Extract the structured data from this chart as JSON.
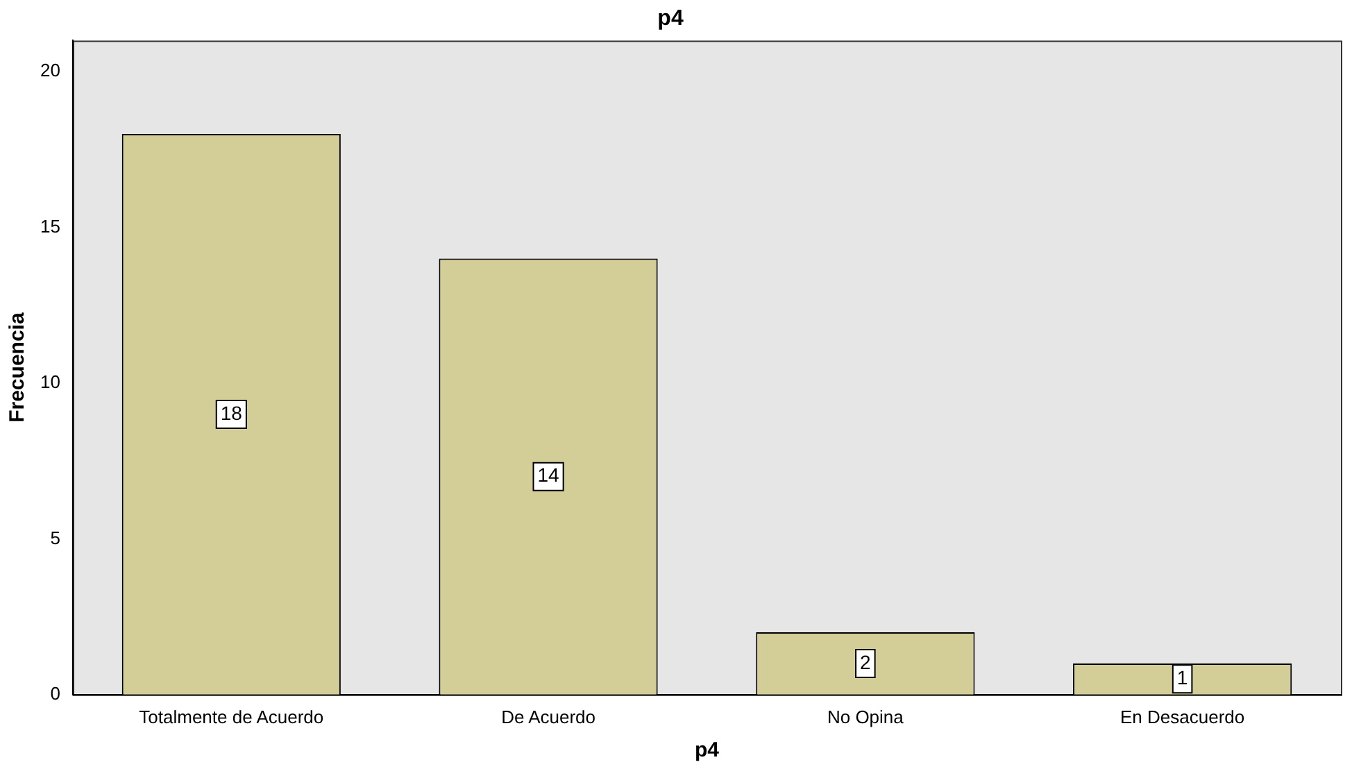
{
  "chart_data": {
    "type": "bar",
    "title": "p4",
    "xlabel": "p4",
    "ylabel": "Frecuencia",
    "categories": [
      "Totalmente de Acuerdo",
      "De Acuerdo",
      "No Opina",
      "En Desacuerdo"
    ],
    "values": [
      18,
      14,
      2,
      1
    ],
    "color": "#d3ce97",
    "ylim": [
      0,
      21
    ],
    "yticks": [
      0,
      5,
      10,
      15,
      20
    ],
    "grid": false,
    "legend": false,
    "data_labels": true
  }
}
